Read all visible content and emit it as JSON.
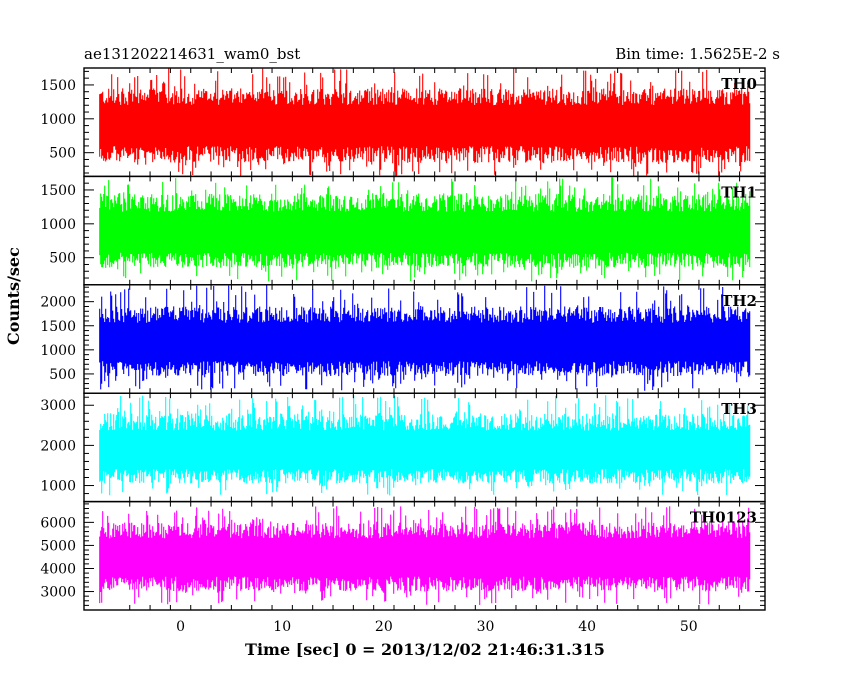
{
  "header": {
    "title": "ae131202214631_wam0_bst",
    "bin_time": "Bin time: 1.5625E-2 s"
  },
  "chart_data": {
    "type": "line",
    "xlabel": "Time [sec] 0 = 2013/12/02 21:46:31.315",
    "ylabel": "Counts/sec",
    "x_range": [
      -8,
      56
    ],
    "xlim": [
      -9.5,
      57.5
    ],
    "x_ticks": [
      0,
      10,
      20,
      30,
      40,
      50
    ],
    "bin_time_s": 0.015625,
    "panels": [
      {
        "name": "TH0",
        "color": "#ff0000",
        "ylim": [
          150,
          1750
        ],
        "yticks": [
          500,
          1000,
          1500
        ],
        "mean": 900,
        "typical_min": 350,
        "typical_max": 1450,
        "peak_max": 1750,
        "floor_min": 150
      },
      {
        "name": "TH1",
        "color": "#00ff00",
        "ylim": [
          100,
          1700
        ],
        "yticks": [
          500,
          1000,
          1500
        ],
        "mean": 850,
        "typical_min": 350,
        "typical_max": 1450,
        "peak_max": 1700,
        "floor_min": 150
      },
      {
        "name": "TH2",
        "color": "#0000ff",
        "ylim": [
          100,
          2350
        ],
        "yticks": [
          500,
          1000,
          1500,
          2000
        ],
        "mean": 1150,
        "typical_min": 450,
        "typical_max": 1900,
        "peak_max": 2350,
        "floor_min": 150
      },
      {
        "name": "TH3",
        "color": "#00ffff",
        "ylim": [
          600,
          3300
        ],
        "yticks": [
          1000,
          2000,
          3000
        ],
        "mean": 1850,
        "typical_min": 1050,
        "typical_max": 2800,
        "peak_max": 3250,
        "floor_min": 750
      },
      {
        "name": "TH0123",
        "color": "#ff00ff",
        "ylim": [
          2200,
          6900
        ],
        "yticks": [
          3000,
          4000,
          5000,
          6000
        ],
        "mean": 4450,
        "typical_min": 3000,
        "typical_max": 6000,
        "peak_max": 6700,
        "floor_min": 2400
      }
    ]
  }
}
